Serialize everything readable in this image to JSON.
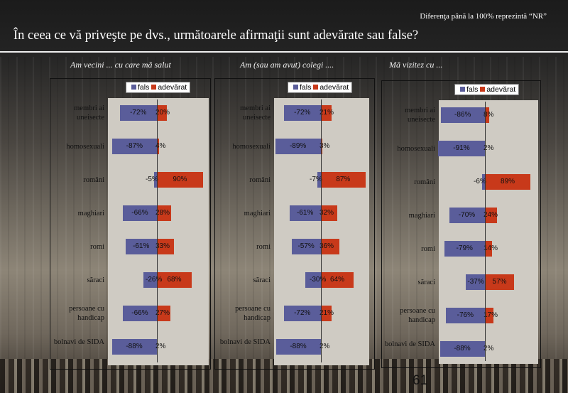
{
  "note": "Diferenţa până la 100% reprezintă  “NR”",
  "title": "În ceea ce vă priveşte pe dvs., următoarele afirmaţii sunt adevărate sau false?",
  "page_number": "61",
  "colors": {
    "fals": "#5a5d9a",
    "adevarat": "#c8391a"
  },
  "chart_data": [
    {
      "type": "bar",
      "title": "Am vecini ... cu care mă salut",
      "legend": [
        "fals",
        "adevărat"
      ],
      "categories": [
        "membri ai uneisecte",
        "homosexuali",
        "români",
        "maghiari",
        "romi",
        "săraci",
        "persoane cu handicap",
        "bolnavi de SIDA"
      ],
      "series": [
        {
          "name": "fals",
          "values": [
            -72,
            -87,
            -5,
            -66,
            -61,
            -26,
            -66,
            -88
          ]
        },
        {
          "name": "adevărat",
          "values": [
            20,
            4,
            90,
            28,
            33,
            68,
            27,
            2
          ]
        }
      ]
    },
    {
      "type": "bar",
      "title": "Am (sau am avut) colegi ....",
      "legend": [
        "fals",
        "adevărat"
      ],
      "categories": [
        "membri ai uneisecte",
        "homosexuali",
        "români",
        "maghiari",
        "romi",
        "săraci",
        "persoane cu handicap",
        "bolnavi de SIDA"
      ],
      "series": [
        {
          "name": "fals",
          "values": [
            -72,
            -89,
            -7,
            -61,
            -57,
            -30,
            -72,
            -88
          ]
        },
        {
          "name": "adevărat",
          "values": [
            21,
            3,
            87,
            32,
            36,
            64,
            21,
            2
          ]
        }
      ]
    },
    {
      "type": "bar",
      "title": "Mă vizitez cu ...",
      "legend": [
        "fals",
        "adevărat"
      ],
      "categories": [
        "membri ai uneisecte",
        "homosexuali",
        "români",
        "maghiari",
        "romi",
        "săraci",
        "persoane cu handicap",
        "bolnavi de SIDA"
      ],
      "series": [
        {
          "name": "fals",
          "values": [
            -86,
            -91,
            -6,
            -70,
            -79,
            -37,
            -76,
            -88
          ]
        },
        {
          "name": "adevărat",
          "values": [
            8,
            2,
            89,
            24,
            14,
            57,
            17,
            2
          ]
        }
      ]
    }
  ]
}
